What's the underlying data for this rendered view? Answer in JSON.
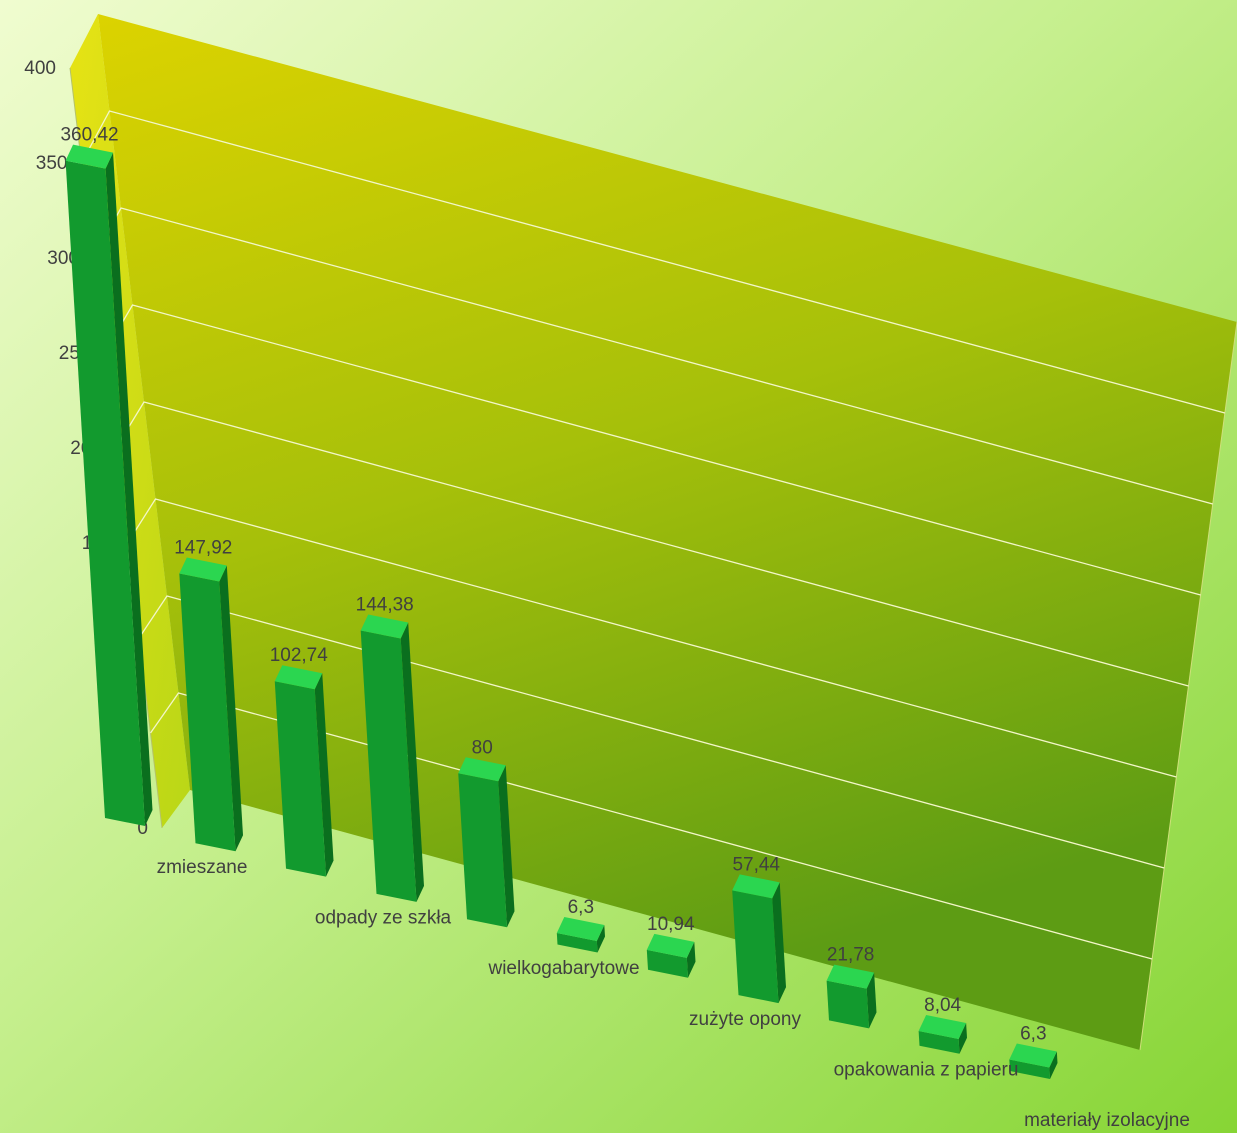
{
  "chart_data": {
    "type": "bar",
    "categories": [
      "zmieszane",
      "",
      "odpady ze szkła",
      "",
      "wielkogabarytowe",
      "",
      "zużyte opony",
      "",
      "opakowania z papieru",
      "",
      "materiały izolacyjne"
    ],
    "values": [
      360.42,
      147.92,
      102.74,
      144.38,
      80,
      6.3,
      10.94,
      57.44,
      21.78,
      8.04,
      6.3
    ],
    "data_labels": [
      "360,42",
      "147,92",
      "102,74",
      "144,38",
      "80",
      "6,3",
      "10,94",
      "57,44",
      "21,78",
      "8,04",
      "6,3"
    ],
    "ylim": [
      0,
      400
    ],
    "yticks": [
      0,
      50,
      100,
      150,
      200,
      250,
      300,
      350,
      400
    ],
    "grid": true,
    "three_d": true,
    "colors": {
      "bar_front": "#129a2e",
      "bar_side": "#0a6f1e",
      "bar_top": "#2bd650",
      "plane_light": "#d6d100",
      "plane_dark": "#5e9e12",
      "background_light": "#eefcc8",
      "background_dark": "#8ad63a",
      "text": "#404040"
    }
  }
}
